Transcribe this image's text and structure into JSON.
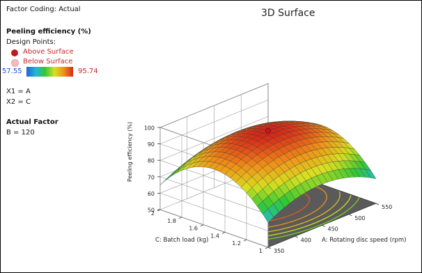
{
  "header": {
    "factor_coding": "Factor Coding: Actual"
  },
  "legend": {
    "response": "Peeling efficiency (%)",
    "design_points_label": "Design Points:",
    "above_label": "Above Surface",
    "below_label": "Below Surface",
    "above_color": "#c0181e",
    "below_color": "#f2bcbc",
    "range_min": "57.55",
    "range_max": "95.74"
  },
  "factors": {
    "x1": "X1 = A",
    "x2": "X2 = C"
  },
  "actual_factor": {
    "heading": "Actual Factor",
    "value": "B = 120"
  },
  "chart_data": {
    "type": "surface",
    "title": "3D Surface",
    "x_axis": {
      "label": "A: Rotating disc speed (rpm)",
      "range": [
        350,
        550
      ],
      "ticks": [
        "350",
        "400",
        "450",
        "500",
        "550"
      ]
    },
    "y_axis": {
      "label": "C: Batch load (kg)",
      "range": [
        1,
        2
      ],
      "ticks": [
        "1",
        "1.2",
        "1.4",
        "1.6",
        "1.8",
        "2"
      ]
    },
    "z_axis": {
      "label": "Peeling efficiency (%)",
      "range": [
        50,
        100
      ],
      "ticks": [
        "50",
        "60",
        "70",
        "80",
        "90",
        "100"
      ]
    },
    "design_points": [
      {
        "type": "above",
        "A": 450,
        "C": 1.5,
        "value": 96
      }
    ],
    "colorscale": [
      "#1e63d6",
      "#20b8d8",
      "#32c832",
      "#d8e020",
      "#f09018",
      "#d82818"
    ]
  }
}
